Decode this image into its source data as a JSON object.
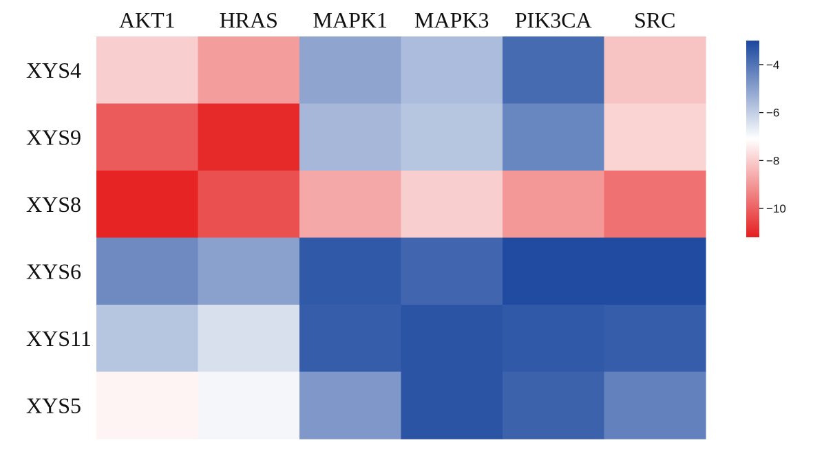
{
  "chart_data": {
    "type": "heatmap",
    "columns": [
      "AKT1",
      "HRAS",
      "MAPK1",
      "MAPK3",
      "PIK3CA",
      "SRC"
    ],
    "rows": [
      "XYS4",
      "XYS9",
      "XYS8",
      "XYS6",
      "XYS11",
      "XYS5"
    ],
    "values": [
      [
        -8.0,
        -8.9,
        -5.1,
        -5.6,
        -3.8,
        -8.2
      ],
      [
        -10.1,
        -11.0,
        -5.5,
        -5.8,
        -4.4,
        -7.9
      ],
      [
        -11.1,
        -10.3,
        -8.7,
        -8.0,
        -9.0,
        -9.7
      ],
      [
        -4.5,
        -5.0,
        -3.4,
        -3.7,
        -3.1,
        -3.1
      ],
      [
        -5.8,
        -6.4,
        -3.5,
        -3.3,
        -3.4,
        -3.5
      ],
      [
        -7.3,
        -6.9,
        -4.8,
        -3.3,
        -3.6,
        -4.3
      ]
    ],
    "colorbar": {
      "min": -11.2,
      "max": -3.0,
      "ticks": [
        -4,
        -6,
        -8,
        -10
      ],
      "tick_labels": [
        "−4",
        "−6",
        "−8",
        "−10"
      ]
    },
    "colors": {
      "low": "#e51f1f",
      "mid": "#ffffff",
      "high": "#1a479e"
    }
  }
}
